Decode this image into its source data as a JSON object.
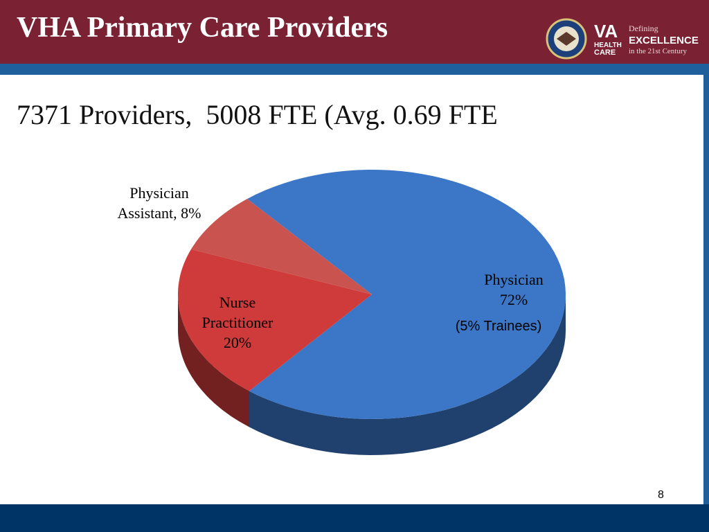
{
  "chart_data": {
    "type": "pie",
    "title": "VHA Primary Care Providers",
    "subtitle": "7371 Providers,  5008 FTE (Avg. 0.69 FTE",
    "categories": [
      "Physician",
      "Nurse Practitioner",
      "Physician Assistant,"
    ],
    "values": [
      72,
      20,
      8
    ],
    "value_labels": [
      "72%",
      "20%",
      "8%"
    ],
    "colors": [
      "#3b77c6",
      "#cf3a3a",
      "#c9544f"
    ],
    "annotation": "(5% Trainees)"
  },
  "logo": {
    "brand": "VA",
    "line1": "HEALTH",
    "line2": "CARE",
    "tag1": "Defining",
    "tag2": "EXCELLENCE",
    "tag3": "in the 21st Century"
  },
  "slide_number": "8"
}
